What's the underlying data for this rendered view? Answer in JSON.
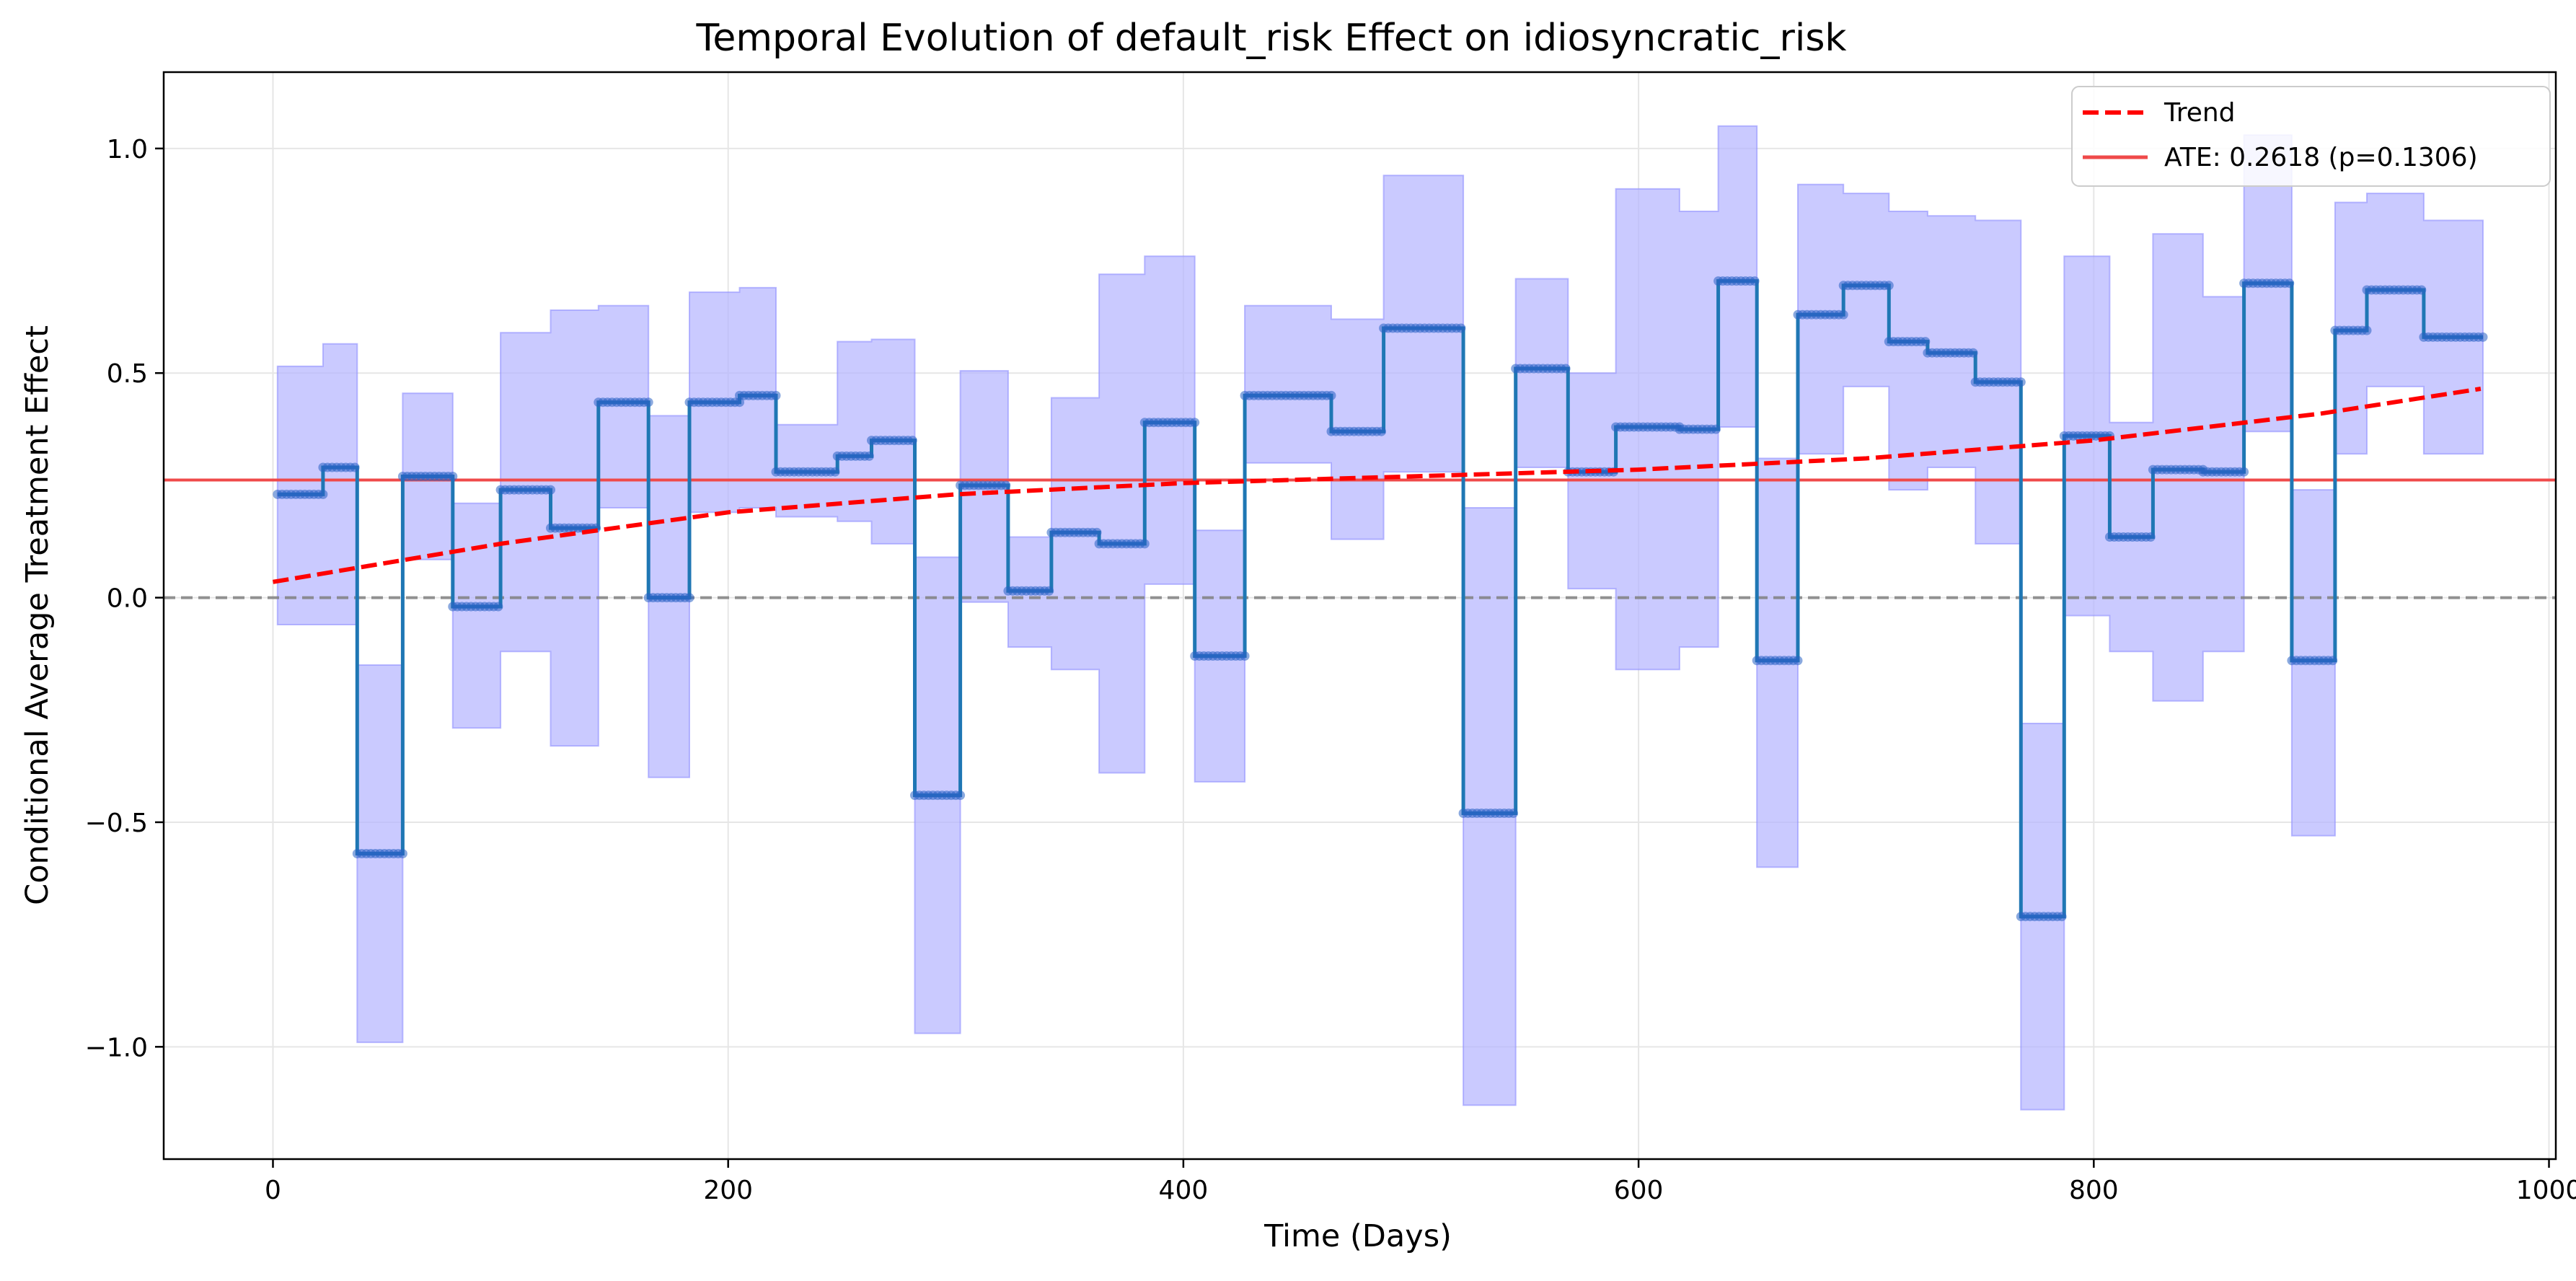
{
  "chart_data": {
    "type": "line",
    "title": "Temporal Evolution of default_risk Effect on idiosyncratic_risk",
    "xlabel": "Time (Days)",
    "ylabel": "Conditional Average Treatment Effect",
    "xlim": [
      -48,
      1003
    ],
    "ylim": [
      -1.25,
      1.17
    ],
    "xticks": [
      0,
      200,
      400,
      600,
      800,
      1000
    ],
    "xtick_labels": [
      "0",
      "200",
      "400",
      "600",
      "800",
      "1000"
    ],
    "yticks": [
      -1.0,
      -0.5,
      0.0,
      0.5,
      1.0
    ],
    "ytick_labels": [
      "−1.0",
      "−0.5",
      "0.0",
      "0.5",
      "1.0"
    ],
    "grid": true,
    "legend_position": "top-right",
    "colors": {
      "cate_line": "#1f77b4",
      "cate_points": "#2a62c4",
      "confidence_band": "#b3b3ff",
      "trend": "#ff0000",
      "ate": "#ef4a4a",
      "zero_line": "#808080"
    },
    "legend": [
      {
        "label": "Trend",
        "style": "dashed",
        "color": "#ff0000"
      },
      {
        "label": "ATE: 0.2618 (p=0.1306)",
        "style": "solid",
        "color": "#ef4a4a"
      }
    ],
    "ate": {
      "value": 0.2618,
      "p_value": 0.1306
    },
    "zero_reference": 0.0,
    "trend": {
      "x": [
        0,
        100,
        200,
        300,
        400,
        500,
        600,
        700,
        800,
        900,
        970
      ],
      "y": [
        0.035,
        0.12,
        0.19,
        0.23,
        0.255,
        0.27,
        0.285,
        0.31,
        0.35,
        0.41,
        0.465
      ]
    },
    "cate_segments": [
      {
        "x0": 2,
        "x1": 22,
        "y": 0.23,
        "lo": -0.06,
        "hi": 0.515
      },
      {
        "x0": 22,
        "x1": 37,
        "y": 0.29,
        "lo": -0.06,
        "hi": 0.565
      },
      {
        "x0": 37,
        "x1": 57,
        "y": -0.57,
        "lo": -0.99,
        "hi": -0.15
      },
      {
        "x0": 57,
        "x1": 79,
        "y": 0.27,
        "lo": 0.085,
        "hi": 0.455
      },
      {
        "x0": 79,
        "x1": 100,
        "y": -0.02,
        "lo": -0.29,
        "hi": 0.21
      },
      {
        "x0": 100,
        "x1": 122,
        "y": 0.24,
        "lo": -0.12,
        "hi": 0.59
      },
      {
        "x0": 122,
        "x1": 143,
        "y": 0.155,
        "lo": -0.33,
        "hi": 0.64
      },
      {
        "x0": 143,
        "x1": 165,
        "y": 0.435,
        "lo": 0.2,
        "hi": 0.65
      },
      {
        "x0": 165,
        "x1": 183,
        "y": 0.0,
        "lo": -0.4,
        "hi": 0.405
      },
      {
        "x0": 183,
        "x1": 205,
        "y": 0.435,
        "lo": 0.19,
        "hi": 0.68
      },
      {
        "x0": 205,
        "x1": 221,
        "y": 0.45,
        "lo": 0.2,
        "hi": 0.69
      },
      {
        "x0": 221,
        "x1": 248,
        "y": 0.28,
        "lo": 0.18,
        "hi": 0.385
      },
      {
        "x0": 248,
        "x1": 263,
        "y": 0.315,
        "lo": 0.17,
        "hi": 0.57
      },
      {
        "x0": 263,
        "x1": 282,
        "y": 0.35,
        "lo": 0.12,
        "hi": 0.575
      },
      {
        "x0": 282,
        "x1": 302,
        "y": -0.44,
        "lo": -0.97,
        "hi": 0.09
      },
      {
        "x0": 302,
        "x1": 323,
        "y": 0.25,
        "lo": -0.01,
        "hi": 0.505
      },
      {
        "x0": 323,
        "x1": 342,
        "y": 0.015,
        "lo": -0.11,
        "hi": 0.135
      },
      {
        "x0": 342,
        "x1": 363,
        "y": 0.145,
        "lo": -0.16,
        "hi": 0.445
      },
      {
        "x0": 363,
        "x1": 383,
        "y": 0.12,
        "lo": -0.39,
        "hi": 0.72
      },
      {
        "x0": 383,
        "x1": 405,
        "y": 0.39,
        "lo": 0.03,
        "hi": 0.76
      },
      {
        "x0": 405,
        "x1": 427,
        "y": -0.13,
        "lo": -0.41,
        "hi": 0.15
      },
      {
        "x0": 427,
        "x1": 465,
        "y": 0.45,
        "lo": 0.3,
        "hi": 0.65
      },
      {
        "x0": 465,
        "x1": 488,
        "y": 0.37,
        "lo": 0.13,
        "hi": 0.62
      },
      {
        "x0": 488,
        "x1": 523,
        "y": 0.6,
        "lo": 0.28,
        "hi": 0.94
      },
      {
        "x0": 523,
        "x1": 546,
        "y": -0.48,
        "lo": -1.13,
        "hi": 0.2
      },
      {
        "x0": 546,
        "x1": 569,
        "y": 0.51,
        "lo": 0.29,
        "hi": 0.71
      },
      {
        "x0": 569,
        "x1": 590,
        "y": 0.28,
        "lo": 0.02,
        "hi": 0.5
      },
      {
        "x0": 590,
        "x1": 618,
        "y": 0.38,
        "lo": -0.16,
        "hi": 0.91
      },
      {
        "x0": 618,
        "x1": 635,
        "y": 0.375,
        "lo": -0.11,
        "hi": 0.86
      },
      {
        "x0": 635,
        "x1": 652,
        "y": 0.705,
        "lo": 0.38,
        "hi": 1.05
      },
      {
        "x0": 652,
        "x1": 670,
        "y": -0.14,
        "lo": -0.6,
        "hi": 0.31
      },
      {
        "x0": 670,
        "x1": 690,
        "y": 0.63,
        "lo": 0.32,
        "hi": 0.92
      },
      {
        "x0": 690,
        "x1": 710,
        "y": 0.695,
        "lo": 0.47,
        "hi": 0.9
      },
      {
        "x0": 710,
        "x1": 727,
        "y": 0.57,
        "lo": 0.24,
        "hi": 0.86
      },
      {
        "x0": 727,
        "x1": 748,
        "y": 0.545,
        "lo": 0.29,
        "hi": 0.85
      },
      {
        "x0": 748,
        "x1": 768,
        "y": 0.48,
        "lo": 0.12,
        "hi": 0.84
      },
      {
        "x0": 768,
        "x1": 787,
        "y": -0.71,
        "lo": -1.14,
        "hi": -0.28
      },
      {
        "x0": 787,
        "x1": 807,
        "y": 0.36,
        "lo": -0.04,
        "hi": 0.76
      },
      {
        "x0": 807,
        "x1": 826,
        "y": 0.135,
        "lo": -0.12,
        "hi": 0.39
      },
      {
        "x0": 826,
        "x1": 848,
        "y": 0.285,
        "lo": -0.23,
        "hi": 0.81
      },
      {
        "x0": 848,
        "x1": 866,
        "y": 0.28,
        "lo": -0.12,
        "hi": 0.67
      },
      {
        "x0": 866,
        "x1": 887,
        "y": 0.7,
        "lo": 0.37,
        "hi": 1.03
      },
      {
        "x0": 887,
        "x1": 906,
        "y": -0.14,
        "lo": -0.53,
        "hi": 0.24
      },
      {
        "x0": 906,
        "x1": 920,
        "y": 0.595,
        "lo": 0.32,
        "hi": 0.88
      },
      {
        "x0": 920,
        "x1": 945,
        "y": 0.685,
        "lo": 0.47,
        "hi": 0.9
      },
      {
        "x0": 945,
        "x1": 971,
        "y": 0.58,
        "lo": 0.32,
        "hi": 0.84
      }
    ]
  }
}
